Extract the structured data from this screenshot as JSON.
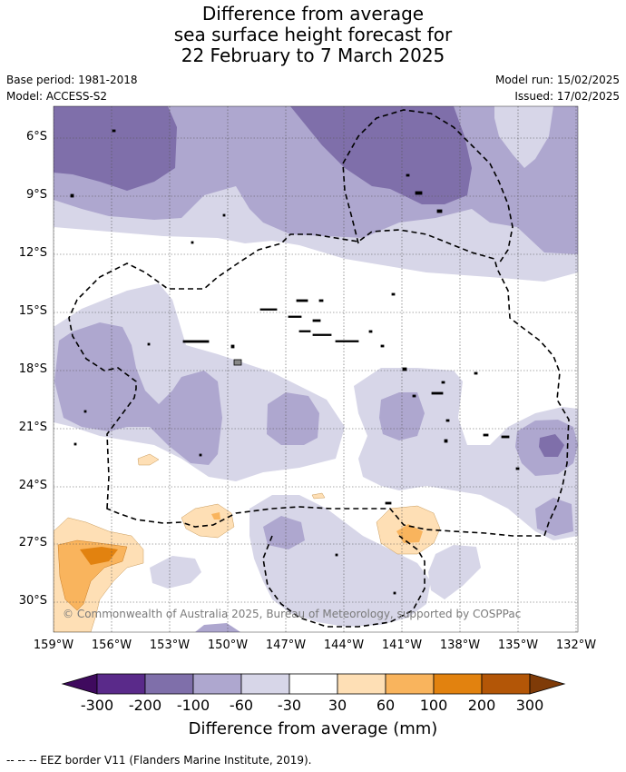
{
  "title": {
    "line1": "Difference from average",
    "line2": "sea surface height forecast for",
    "line3": "22 February to 7 March 2025"
  },
  "meta": {
    "base_period": "Base period: 1981-2018",
    "model": "Model: ACCESS-S2",
    "model_run": "Model run: 15/02/2025",
    "issued": "Issued: 17/02/2025"
  },
  "map": {
    "lat_labels": [
      "6°S",
      "9°S",
      "12°S",
      "15°S",
      "18°S",
      "21°S",
      "24°S",
      "27°S",
      "30°S"
    ],
    "lon_labels": [
      "159°W",
      "156°W",
      "153°W",
      "150°W",
      "147°W",
      "144°W",
      "141°W",
      "138°W",
      "135°W",
      "132°W"
    ],
    "copyright": "© Commonwealth of Australia 2025, Bureau of Meteorology, supported by COSPPac"
  },
  "colorbar": {
    "labels": [
      "-300",
      "-200",
      "-100",
      "-60",
      "-30",
      "30",
      "60",
      "100",
      "200",
      "300"
    ],
    "colors": [
      "#3f0a5e",
      "#5a2a8a",
      "#7f6faa",
      "#aea7cf",
      "#d7d6e8",
      "#ffffff",
      "#fedfb5",
      "#f9b45d",
      "#e2820f",
      "#b35607",
      "#7f3b08"
    ],
    "title": "Difference from average (mm)"
  },
  "footer": "--  --  -- EEZ border V11 (Flanders Marine Institute, 2019)."
}
